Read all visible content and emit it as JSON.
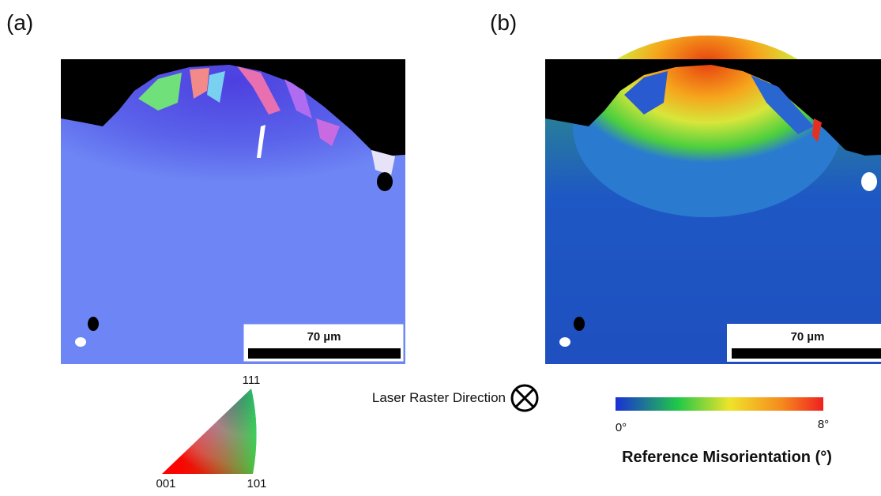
{
  "panels": [
    {
      "label": "(a)",
      "scale_bar": "70 µm"
    },
    {
      "label": "(b)",
      "scale_bar": "70 µm"
    }
  ],
  "ipf_key": {
    "top": "111",
    "left": "001",
    "right": "101"
  },
  "laser_direction": "Laser Raster Direction",
  "colorbar": {
    "min_label": "0°",
    "max_label": "8°",
    "title": "Reference Misorientation (°)"
  }
}
